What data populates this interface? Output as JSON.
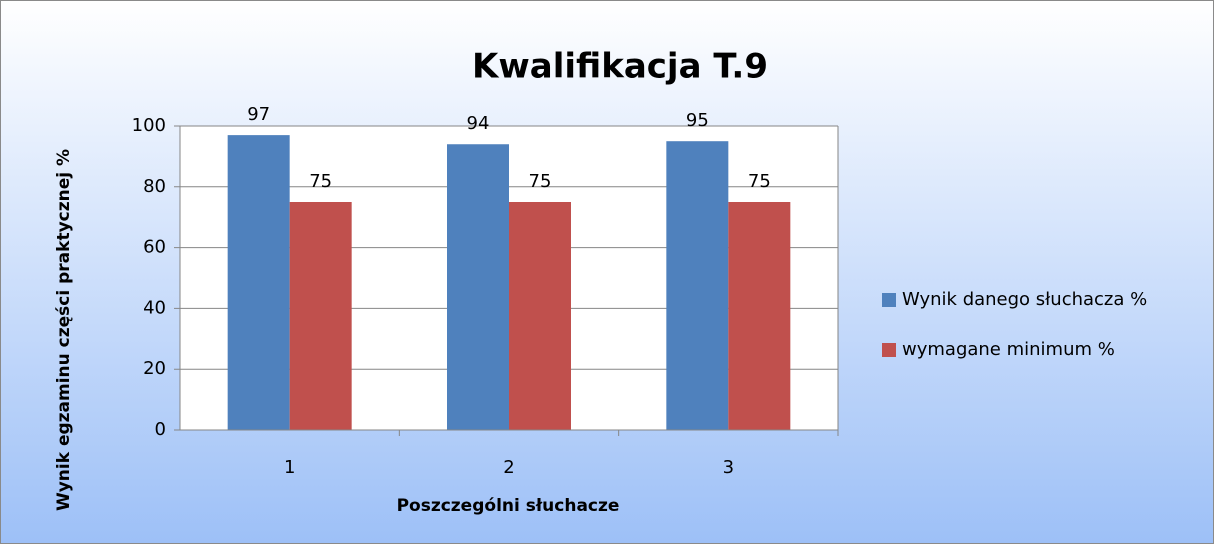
{
  "chart_data": {
    "type": "bar",
    "title": "Kwalifikacja T.9",
    "xlabel": "Poszczególni słuchacze",
    "ylabel": "Wynik egzaminu części praktycznej %",
    "categories": [
      "1",
      "2",
      "3"
    ],
    "series": [
      {
        "name": "Wynik danego słuchacza %",
        "color": "#4f81bd",
        "values": [
          97,
          94,
          95
        ]
      },
      {
        "name": "wymagane minimum %",
        "color": "#c0504d",
        "values": [
          75,
          75,
          75
        ]
      }
    ],
    "ylim": [
      0,
      100
    ],
    "yticks": [
      0,
      20,
      40,
      60,
      80,
      100
    ],
    "grid": true,
    "legend": "right"
  }
}
